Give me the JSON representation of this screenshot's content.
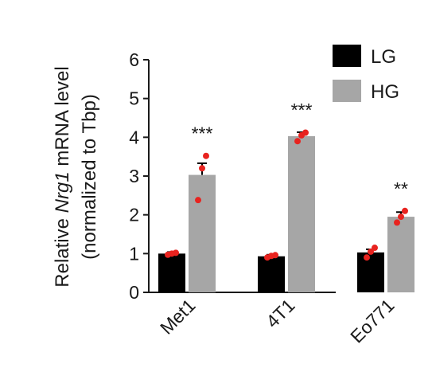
{
  "chart_data": {
    "type": "bar",
    "ylabel_parts": [
      "Relative ",
      "Nrg1",
      " mRNA level"
    ],
    "ylabel_line2": "(normalized to Tbp)",
    "ylim": [
      0,
      6
    ],
    "yticks": [
      "0",
      "1",
      "2",
      "3",
      "4",
      "5",
      "6"
    ],
    "categories": [
      "Met1",
      "4T1",
      "Eo771"
    ],
    "series": [
      {
        "name": "LG",
        "color": "#000000",
        "values": [
          1.0,
          0.93,
          1.03
        ],
        "errors": [
          0.04,
          0.04,
          0.08
        ],
        "points": [
          [
            0.97,
            1.0,
            1.02
          ],
          [
            0.9,
            0.94,
            0.96
          ],
          [
            0.9,
            1.05,
            1.15
          ]
        ]
      },
      {
        "name": "HG",
        "color": "#a6a6a6",
        "values": [
          3.03,
          4.03,
          1.95
        ],
        "errors": [
          0.3,
          0.1,
          0.12
        ],
        "points": [
          [
            2.38,
            3.2,
            3.52
          ],
          [
            3.9,
            4.05,
            4.12
          ],
          [
            1.8,
            1.95,
            2.1
          ]
        ]
      }
    ],
    "significance": [
      "***",
      "***",
      "**"
    ],
    "point_color": "#e8231f",
    "legend_position": "top-right"
  }
}
